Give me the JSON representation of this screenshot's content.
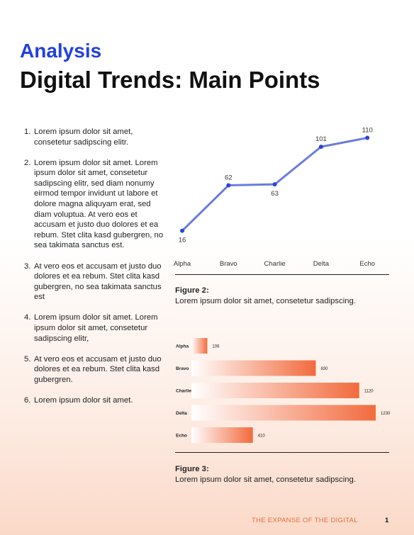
{
  "header": {
    "kicker": "Analysis",
    "title": "Digital Trends: Main Points"
  },
  "list": [
    {
      "num": "1.",
      "text": "Lorem ipsum dolor sit amet, consetetur sadipscing elitr."
    },
    {
      "num": "2.",
      "text": "Lorem ipsum dolor sit amet. Lorem ipsum dolor sit amet, consetetur sadipscing elitr, sed diam nonumy eirmod tempor invidunt ut labore et dolore magna aliquyam erat, sed diam voluptua. At vero eos et accusam et justo duo dolores et ea rebum. Stet clita kasd gubergren, no sea takimata sanctus est."
    },
    {
      "num": "3.",
      "text": "At vero eos et accusam et justo duo dolores et ea rebum. Stet clita kasd gubergren, no sea takimata sanctus est"
    },
    {
      "num": "4.",
      "text": "Lorem ipsum dolor sit amet. Lorem ipsum dolor sit amet, consetetur sadipscing elitr,"
    },
    {
      "num": "5.",
      "text": "At vero eos et accusam et justo duo dolores et ea rebum. Stet clita kasd gubergren."
    },
    {
      "num": "6.",
      "text": "Lorem ipsum dolor sit amet."
    }
  ],
  "figures": [
    {
      "label": "Figure 2:",
      "caption": "Lorem ipsum dolor sit amet, consetetur sadipscing."
    },
    {
      "label": "Figure 3:",
      "caption": "Lorem ipsum dolor sit amet, consetetur sadipscing."
    }
  ],
  "footer": {
    "text": "THE EXPANSE OF THE DIGITAL",
    "page": "1"
  },
  "colors": {
    "accent": "#2340e0",
    "line": "#6a7ddb",
    "point": "#2d44d6",
    "bar": "#f26a3d",
    "footer": "#e0703c"
  },
  "chart_data": [
    {
      "type": "line",
      "categories": [
        "Alpha",
        "Bravo",
        "Charlie",
        "Delta",
        "Echo"
      ],
      "values": [
        16,
        62,
        63,
        101,
        110
      ],
      "data_labels": [
        "16",
        "62",
        "63",
        "101",
        "110"
      ],
      "ylim": [
        0,
        130
      ],
      "grid": false
    },
    {
      "type": "bar",
      "orientation": "horizontal",
      "categories": [
        "Alpha",
        "Bravo",
        "Charlie",
        "Delta",
        "Echo"
      ],
      "values": [
        106,
        830,
        1120,
        1230,
        410
      ],
      "data_labels": [
        "106",
        "830",
        "1120",
        "1230",
        "410"
      ],
      "xlim": [
        0,
        1230
      ],
      "grid": false
    }
  ]
}
